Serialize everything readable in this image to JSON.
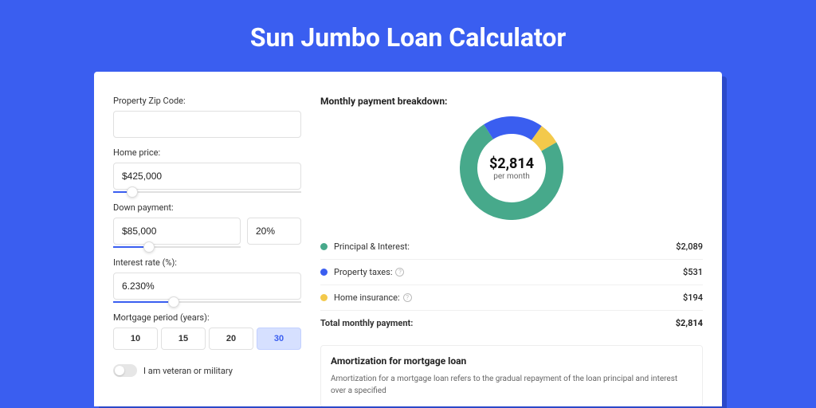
{
  "page": {
    "title": "Sun Jumbo Loan Calculator",
    "background_color": "#3a5ef0",
    "card_shadow_color": "#2b49c9"
  },
  "form": {
    "zip": {
      "label": "Property Zip Code:",
      "value": ""
    },
    "home_price": {
      "label": "Home price:",
      "value": "$425,000",
      "slider_pct": 10
    },
    "down_payment": {
      "label": "Down payment:",
      "value": "$85,000",
      "pct": "20%",
      "slider_pct": 28
    },
    "interest": {
      "label": "Interest rate (%):",
      "value": "6.230%",
      "slider_pct": 32
    },
    "period": {
      "label": "Mortgage period (years):",
      "options": [
        "10",
        "15",
        "20",
        "30"
      ],
      "active_index": 3
    },
    "veteran": {
      "label": "I am veteran or military",
      "checked": false
    }
  },
  "breakdown": {
    "title": "Monthly payment breakdown:",
    "center_amount": "$2,814",
    "center_sub": "per month",
    "donut": {
      "size": 130,
      "stroke": 22,
      "segments": [
        {
          "value": 2089,
          "color": "#47a98b"
        },
        {
          "value": 531,
          "color": "#3a5ef0"
        },
        {
          "value": 194,
          "color": "#f3c94b"
        }
      ]
    },
    "rows": [
      {
        "dot_color": "#47a98b",
        "label": "Principal & Interest:",
        "value": "$2,089",
        "info": false
      },
      {
        "dot_color": "#3a5ef0",
        "label": "Property taxes:",
        "value": "$531",
        "info": true
      },
      {
        "dot_color": "#f3c94b",
        "label": "Home insurance:",
        "value": "$194",
        "info": true
      }
    ],
    "total": {
      "label": "Total monthly payment:",
      "value": "$2,814"
    }
  },
  "amortization": {
    "title": "Amortization for mortgage loan",
    "text": "Amortization for a mortgage loan refers to the gradual repayment of the loan principal and interest over a specified"
  }
}
